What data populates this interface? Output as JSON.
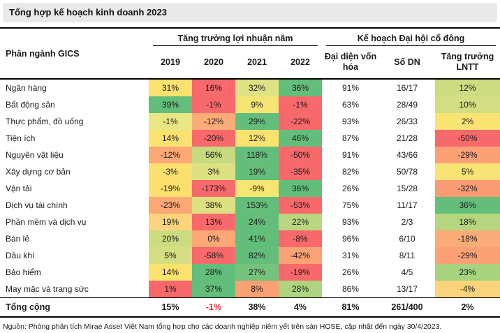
{
  "chart_data": {
    "type": "table",
    "title": "Tổng hợp kế hoạch kinh doanh 2023",
    "headers": {
      "sector": "Phân ngành GICS",
      "group_profit": "Tăng trưởng lợi nhuận năm",
      "group_plan": "Kế hoạch Đại hội cổ đông",
      "years": [
        "2019",
        "2020",
        "2021",
        "2022"
      ],
      "cap": "Đại diện vốn hóa",
      "dn": "Số DN",
      "lntt": "Tăng trưởng LNTT"
    },
    "heat_scale": {
      "min_color": "#F8696B",
      "mid_color": "#FBE26E",
      "max_color": "#63BE7B"
    },
    "rows": [
      {
        "sector": "Ngân hàng",
        "years": [
          {
            "v": "31%",
            "c": "#FBE26E"
          },
          {
            "v": "16%",
            "c": "#F8696B"
          },
          {
            "v": "32%",
            "c": "#DFE182"
          },
          {
            "v": "36%",
            "c": "#63BE7B"
          }
        ],
        "cap": "91%",
        "dn": "16/17",
        "lntt": {
          "v": "12%",
          "c": "#CEDC81"
        }
      },
      {
        "sector": "Bất động sản",
        "years": [
          {
            "v": "39%",
            "c": "#63BE7B"
          },
          {
            "v": "-1%",
            "c": "#F8696B"
          },
          {
            "v": "9%",
            "c": "#F6E473"
          },
          {
            "v": "-1%",
            "c": "#F8696B"
          }
        ],
        "cap": "63%",
        "dn": "28/49",
        "lntt": {
          "v": "10%",
          "c": "#D3DE82"
        }
      },
      {
        "sector": "Thực phẩm, đồ uống",
        "years": [
          {
            "v": "-1%",
            "c": "#E9E783"
          },
          {
            "v": "-12%",
            "c": "#FBAD77"
          },
          {
            "v": "29%",
            "c": "#63BE7B"
          },
          {
            "v": "-22%",
            "c": "#F8696B"
          }
        ],
        "cap": "93%",
        "dn": "26/33",
        "lntt": {
          "v": "2%",
          "c": "#FAE471"
        }
      },
      {
        "sector": "Tiện ích",
        "years": [
          {
            "v": "14%",
            "c": "#FBE26E"
          },
          {
            "v": "-20%",
            "c": "#F8696B"
          },
          {
            "v": "12%",
            "c": "#FBE26E"
          },
          {
            "v": "46%",
            "c": "#63BE7B"
          }
        ],
        "cap": "87%",
        "dn": "21/28",
        "lntt": {
          "v": "-50%",
          "c": "#F8696B"
        }
      },
      {
        "sector": "Nguyên vật liệu",
        "years": [
          {
            "v": "-12%",
            "c": "#FBA875"
          },
          {
            "v": "56%",
            "c": "#C6DA80"
          },
          {
            "v": "118%",
            "c": "#63BE7B"
          },
          {
            "v": "-50%",
            "c": "#F8696B"
          }
        ],
        "cap": "91%",
        "dn": "43/66",
        "lntt": {
          "v": "-29%",
          "c": "#FBA175"
        }
      },
      {
        "sector": "Xây dựng cơ bản",
        "years": [
          {
            "v": "-3%",
            "c": "#FBDF6F"
          },
          {
            "v": "3%",
            "c": "#DDE081"
          },
          {
            "v": "19%",
            "c": "#63BE7B"
          },
          {
            "v": "-35%",
            "c": "#F8696B"
          }
        ],
        "cap": "82%",
        "dn": "50/78",
        "lntt": {
          "v": "5%",
          "c": "#F7E475"
        }
      },
      {
        "sector": "Vận tải",
        "years": [
          {
            "v": "-19%",
            "c": "#FBE06E"
          },
          {
            "v": "-173%",
            "c": "#F8696B"
          },
          {
            "v": "-9%",
            "c": "#F8E572"
          },
          {
            "v": "36%",
            "c": "#63BE7B"
          }
        ],
        "cap": "26%",
        "dn": "15/28",
        "lntt": {
          "v": "-32%",
          "c": "#FA9B74"
        }
      },
      {
        "sector": "Dịch vụ tài chính",
        "years": [
          {
            "v": "-23%",
            "c": "#FBA875"
          },
          {
            "v": "38%",
            "c": "#DDE081"
          },
          {
            "v": "153%",
            "c": "#63BE7B"
          },
          {
            "v": "-53%",
            "c": "#F8696B"
          }
        ],
        "cap": "75%",
        "dn": "11/17",
        "lntt": {
          "v": "36%",
          "c": "#63BE7B"
        }
      },
      {
        "sector": "Phần mềm và dịch vụ",
        "years": [
          {
            "v": "19%",
            "c": "#FCD47B"
          },
          {
            "v": "13%",
            "c": "#F8696B"
          },
          {
            "v": "24%",
            "c": "#63BE7B"
          },
          {
            "v": "22%",
            "c": "#B9D780"
          }
        ],
        "cap": "93%",
        "dn": "2/3",
        "lntt": {
          "v": "18%",
          "c": "#B5D67F"
        }
      },
      {
        "sector": "Bán lẻ",
        "years": [
          {
            "v": "20%",
            "c": "#CCDC81"
          },
          {
            "v": "0%",
            "c": "#FBA875"
          },
          {
            "v": "41%",
            "c": "#63BE7B"
          },
          {
            "v": "-8%",
            "c": "#F8696B"
          }
        ],
        "cap": "96%",
        "dn": "6/10",
        "lntt": {
          "v": "-18%",
          "c": "#FBAC76"
        }
      },
      {
        "sector": "Dầu khí",
        "years": [
          {
            "v": "5%",
            "c": "#D5DE82"
          },
          {
            "v": "-58%",
            "c": "#F8696B"
          },
          {
            "v": "82%",
            "c": "#63BE7B"
          },
          {
            "v": "-42%",
            "c": "#FBA375"
          }
        ],
        "cap": "31%",
        "dn": "8/11",
        "lntt": {
          "v": "-29%",
          "c": "#FBA175"
        }
      },
      {
        "sector": "Bảo hiểm",
        "years": [
          {
            "v": "14%",
            "c": "#FBE26E"
          },
          {
            "v": "28%",
            "c": "#63BE7B"
          },
          {
            "v": "27%",
            "c": "#74C37D"
          },
          {
            "v": "-19%",
            "c": "#F8696B"
          }
        ],
        "cap": "26%",
        "dn": "4/5",
        "lntt": {
          "v": "23%",
          "c": "#A7D27E"
        }
      },
      {
        "sector": "May mặc và trang sức",
        "years": [
          {
            "v": "1%",
            "c": "#F8696B"
          },
          {
            "v": "37%",
            "c": "#63BE7B"
          },
          {
            "v": "8%",
            "c": "#FBA174"
          },
          {
            "v": "28%",
            "c": "#AFD47F"
          }
        ],
        "cap": "86%",
        "dn": "13/17",
        "lntt": {
          "v": "-4%",
          "c": "#FBD37A"
        }
      }
    ],
    "total": {
      "label": "Tổng cộng",
      "values": [
        "15%",
        "-1%",
        "38%",
        "4%",
        "81%",
        "261/400",
        "2%"
      ],
      "negative_value_index": 1,
      "negative_value_color": "#F5212D"
    },
    "source": "Nguồn: Phòng phân tích Mirae Asset Việt Nam tổng hợp cho các doanh nghiệp niêm yết trên sàn HOSE, cập nhật đến ngày 30/4/2023."
  }
}
